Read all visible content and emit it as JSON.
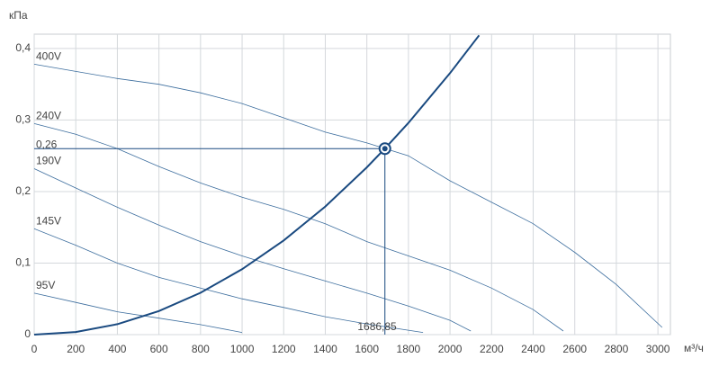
{
  "chart_data": {
    "type": "line",
    "y_label": "кПа",
    "x_label": "м³/ч",
    "xlim": [
      0,
      3060
    ],
    "ylim": [
      0,
      0.42
    ],
    "xticks": [
      0,
      200,
      400,
      600,
      800,
      1000,
      1200,
      1400,
      1600,
      1800,
      2000,
      2200,
      2400,
      2600,
      2800,
      3000
    ],
    "yticks": [
      0,
      {
        "value": 0.1,
        "label": "0,1"
      },
      {
        "value": 0.2,
        "label": "0,2"
      },
      {
        "value": 0.3,
        "label": "0,3"
      },
      {
        "value": 0.4,
        "label": "0,4"
      }
    ],
    "grid": true,
    "series": [
      {
        "name": "400V",
        "color": "#3d6e9e",
        "x": [
          0,
          200,
          400,
          600,
          800,
          1000,
          1200,
          1400,
          1600,
          1800,
          2000,
          2200,
          2400,
          2600,
          2800,
          3020
        ],
        "values": [
          0.378,
          0.368,
          0.358,
          0.35,
          0.338,
          0.323,
          0.303,
          0.283,
          0.268,
          0.25,
          0.215,
          0.185,
          0.155,
          0.115,
          0.07,
          0.01
        ]
      },
      {
        "name": "240V",
        "color": "#3d6e9e",
        "x": [
          0,
          200,
          400,
          600,
          800,
          1000,
          1200,
          1400,
          1600,
          1800,
          2000,
          2200,
          2400,
          2545
        ],
        "values": [
          0.295,
          0.28,
          0.26,
          0.235,
          0.212,
          0.192,
          0.175,
          0.155,
          0.13,
          0.11,
          0.09,
          0.065,
          0.035,
          0.005
        ]
      },
      {
        "name": "190V",
        "color": "#3d6e9e",
        "x": [
          0,
          200,
          400,
          600,
          800,
          1000,
          1200,
          1400,
          1600,
          1800,
          2000,
          2100
        ],
        "values": [
          0.232,
          0.205,
          0.178,
          0.153,
          0.13,
          0.11,
          0.092,
          0.075,
          0.058,
          0.04,
          0.02,
          0.005
        ]
      },
      {
        "name": "145V",
        "color": "#3d6e9e",
        "x": [
          0,
          200,
          400,
          600,
          800,
          1000,
          1200,
          1400,
          1600,
          1870
        ],
        "values": [
          0.148,
          0.125,
          0.1,
          0.08,
          0.065,
          0.05,
          0.038,
          0.025,
          0.015,
          0.003
        ]
      },
      {
        "name": "95V",
        "color": "#3d6e9e",
        "x": [
          0,
          200,
          400,
          600,
          800,
          1000
        ],
        "values": [
          0.058,
          0.045,
          0.032,
          0.023,
          0.014,
          0.003
        ]
      }
    ],
    "system_curve": {
      "color": "#1a4a80",
      "x": [
        0,
        200,
        400,
        600,
        800,
        1000,
        1200,
        1400,
        1600,
        1686.85,
        1800,
        2000,
        2140
      ],
      "values": [
        0,
        0.0037,
        0.0146,
        0.0329,
        0.0585,
        0.0914,
        0.1316,
        0.1791,
        0.2339,
        0.26,
        0.296,
        0.3655,
        0.4184
      ]
    },
    "operating_point": {
      "x": 1686.85,
      "y": 0.26,
      "x_label": "1686,85",
      "y_label": "0,26",
      "color": "#1a4a80"
    }
  }
}
